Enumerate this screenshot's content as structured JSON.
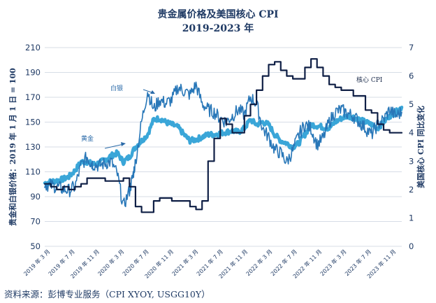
{
  "title_line1": "贵金属价格及美国核心 CPI",
  "title_line2": "2019-2023 年",
  "source": "资料来源：彭博专业服务（CPI XYOY, USGG10Y）",
  "colors": {
    "silver": "#2877b8",
    "gold": "#3aa6d8",
    "cpi": "#0f1f45",
    "grid": "#d7dde6"
  },
  "chart_data": {
    "type": "line",
    "title": "贵金属价格及美国核心 CPI 2019-2023 年",
    "ylabel_left": "贵金和白银价格：2019 年 1 月 1 日 = 100",
    "ylabel_right": "美国核心 CPI 同比变化",
    "ylim_left": [
      50,
      210
    ],
    "yticks_left": [
      "210",
      "190",
      "170",
      "150",
      "130",
      "110",
      "90",
      "70",
      "50"
    ],
    "ylim_right": [
      0,
      7
    ],
    "yticks_right": [
      "7",
      "6",
      "5",
      "4",
      "3",
      "2",
      "1",
      "0"
    ],
    "x_tick_labels": [
      "2019 年 3 月",
      "2019 年 7 月",
      "2019 年 11 月",
      "2020 年 3 月",
      "2020 年 7 月",
      "2020 年 11 月",
      "2021 年 3 月",
      "2021 年 7 月",
      "2021 年 11 月",
      "2022 年 3 月",
      "2022 年 7 月",
      "2022 年 11 月",
      "2023 年 3 月",
      "2023 年 7 月",
      "2023 年 11 月"
    ],
    "annotations": {
      "silver": "白银",
      "gold": "黄金",
      "cpi": "核心 CPI"
    },
    "series": [
      {
        "name": "白银",
        "axis": "left",
        "kind": "daily",
        "t": [
          0,
          1,
          2,
          3,
          4,
          5,
          6,
          7,
          7.5,
          8,
          9,
          10,
          11,
          12,
          13,
          14,
          14.5,
          15,
          16,
          17,
          18,
          19,
          20,
          21,
          22,
          23,
          24,
          25,
          26,
          27,
          28,
          29,
          30,
          31,
          32,
          33,
          34,
          35,
          36,
          37,
          38,
          39,
          40,
          41,
          42,
          43,
          44,
          45,
          46,
          47,
          48,
          49,
          50,
          51,
          52,
          53,
          54,
          55,
          56,
          57,
          58,
          59
        ],
        "values": [
          100,
          99,
          98,
          96,
          95,
          98,
          115,
          122,
          118,
          116,
          115,
          117,
          118,
          108,
          82,
          95,
          105,
          118,
          150,
          175,
          160,
          168,
          165,
          168,
          178,
          175,
          172,
          180,
          165,
          160,
          158,
          153,
          150,
          155,
          160,
          156,
          170,
          165,
          145,
          138,
          128,
          125,
          118,
          127,
          140,
          148,
          145,
          132,
          137,
          150,
          158,
          160,
          157,
          155,
          150,
          145,
          140,
          148,
          152,
          160,
          155,
          158
        ]
      },
      {
        "name": "黄金",
        "axis": "left",
        "kind": "daily",
        "t": [
          0,
          1,
          2,
          3,
          4,
          5,
          6,
          7,
          8,
          9,
          10,
          11,
          12,
          13,
          14,
          15,
          16,
          17,
          18,
          19,
          20,
          21,
          22,
          23,
          24,
          25,
          26,
          27,
          28,
          29,
          30,
          31,
          32,
          33,
          34,
          35,
          36,
          37,
          38,
          39,
          40,
          41,
          42,
          43,
          44,
          45,
          46,
          47,
          48,
          49,
          50,
          51,
          52,
          53,
          54,
          55,
          56,
          57,
          58,
          59
        ],
        "values": [
          101,
          102,
          103,
          104,
          106,
          111,
          118,
          118,
          116,
          117,
          120,
          123,
          125,
          118,
          122,
          130,
          135,
          140,
          152,
          153,
          150,
          148,
          146,
          140,
          135,
          136,
          138,
          140,
          140,
          141,
          142,
          143,
          142,
          145,
          152,
          148,
          150,
          148,
          140,
          135,
          133,
          130,
          133,
          140,
          148,
          147,
          146,
          145,
          150,
          153,
          155,
          154,
          152,
          150,
          148,
          145,
          150,
          155,
          158,
          162
        ]
      },
      {
        "name": "核心 CPI",
        "axis": "right",
        "kind": "monthly",
        "t": [
          0,
          1,
          2,
          3,
          4,
          5,
          6,
          7,
          8,
          9,
          10,
          11,
          12,
          13,
          14,
          15,
          16,
          17,
          18,
          19,
          20,
          21,
          22,
          23,
          24,
          25,
          26,
          27,
          28,
          29,
          30,
          31,
          32,
          33,
          34,
          35,
          36,
          37,
          38,
          39,
          40,
          41,
          42,
          43,
          44,
          45,
          46,
          47,
          48,
          49,
          50,
          51,
          52,
          53,
          54,
          55,
          56,
          57,
          58,
          59
        ],
        "values": [
          2.2,
          2.1,
          2.0,
          2.1,
          2.0,
          2.1,
          2.2,
          2.4,
          2.4,
          2.4,
          2.3,
          2.3,
          2.3,
          2.4,
          2.1,
          1.4,
          1.2,
          1.2,
          1.6,
          1.7,
          1.7,
          1.6,
          1.6,
          1.6,
          1.4,
          1.3,
          1.6,
          3.0,
          3.8,
          4.5,
          4.3,
          4.0,
          4.0,
          4.6,
          5.0,
          5.5,
          6.0,
          6.4,
          6.5,
          6.2,
          6.0,
          5.9,
          5.9,
          6.3,
          6.6,
          6.3,
          6.0,
          5.7,
          5.6,
          5.5,
          5.5,
          5.3,
          5.3,
          4.8,
          4.7,
          4.3,
          4.1,
          4.0,
          4.0,
          4.0
        ]
      }
    ]
  }
}
